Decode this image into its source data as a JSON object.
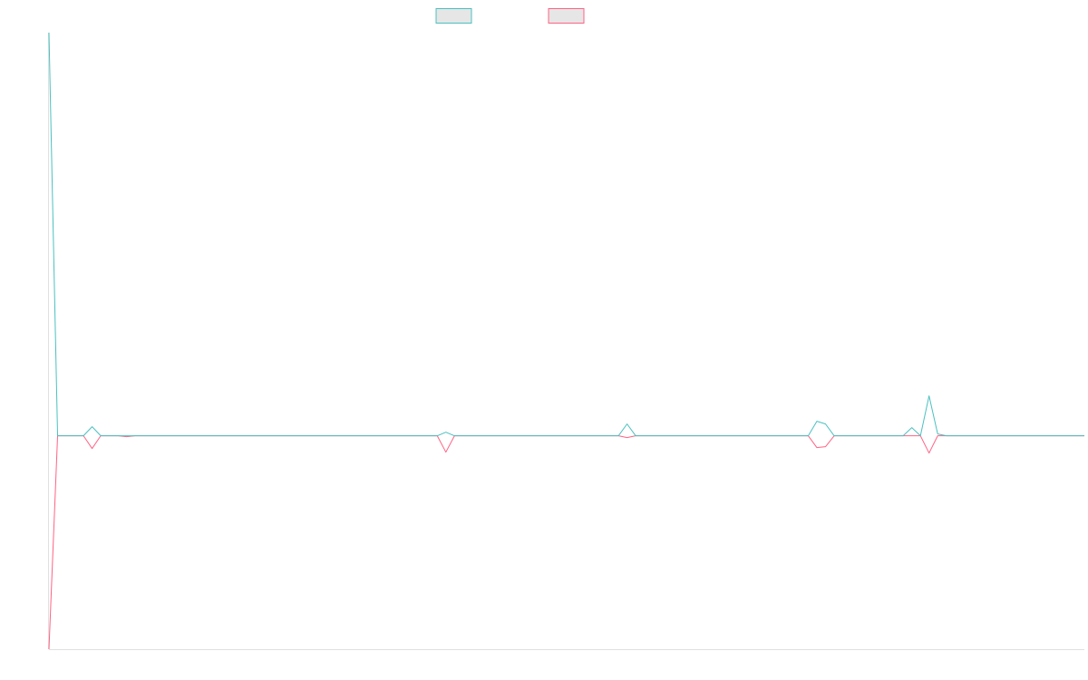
{
  "chart_data": {
    "type": "line",
    "x": [
      0,
      1,
      2,
      3,
      4,
      5,
      6,
      7,
      8,
      9,
      10,
      11,
      12,
      13,
      14,
      15,
      16,
      17,
      18,
      19,
      20,
      21,
      22,
      23,
      24,
      25,
      26,
      27,
      28,
      29,
      30,
      31,
      32,
      33,
      34,
      35,
      36,
      37,
      38,
      39,
      40,
      41,
      42,
      43,
      44,
      45,
      46,
      47,
      48,
      49,
      50,
      51,
      52,
      53,
      54,
      55,
      56,
      57,
      58,
      59,
      60,
      61,
      62,
      63,
      64,
      65,
      66,
      67,
      68,
      69,
      70,
      71,
      72,
      73,
      74,
      75,
      76,
      77,
      78,
      79,
      80,
      81,
      82,
      83,
      84,
      85,
      86,
      87,
      88,
      89,
      90,
      91,
      92,
      93,
      94,
      95,
      96,
      97,
      98,
      99,
      100,
      101,
      102,
      103,
      104,
      105,
      106,
      107,
      108,
      109,
      110,
      111,
      112,
      113,
      114,
      115,
      116,
      117,
      118,
      119,
      120
    ],
    "series": [
      {
        "color": "#4bc0c0",
        "fill": "#e6e6e6",
        "values": [
          444,
          0,
          0,
          0,
          0,
          10,
          0,
          0,
          0,
          0,
          0,
          0,
          0,
          0,
          0,
          0,
          0,
          0,
          0,
          0,
          0,
          0,
          0,
          0,
          0,
          0,
          0,
          0,
          0,
          0,
          0,
          0,
          0,
          0,
          0,
          0,
          0,
          0,
          0,
          0,
          0,
          0,
          0,
          0,
          0,
          0,
          4,
          0,
          0,
          0,
          0,
          0,
          0,
          0,
          0,
          0,
          0,
          0,
          0,
          0,
          0,
          0,
          0,
          0,
          0,
          0,
          0,
          13,
          0,
          0,
          0,
          0,
          0,
          0,
          0,
          0,
          0,
          0,
          0,
          0,
          0,
          0,
          0,
          0,
          0,
          0,
          0,
          0,
          0,
          16,
          13,
          0,
          0,
          0,
          0,
          0,
          0,
          0,
          0,
          0,
          9,
          0,
          44,
          2,
          0,
          0,
          0,
          0,
          0,
          0,
          0,
          0,
          0,
          0,
          0,
          0,
          0,
          0,
          0,
          0,
          0
        ]
      },
      {
        "color": "#ff6384",
        "fill": "#e6e6e6",
        "values": [
          -235,
          0,
          0,
          0,
          0,
          -14,
          0,
          0,
          0,
          -1,
          0,
          0,
          0,
          0,
          0,
          0,
          0,
          0,
          0,
          0,
          0,
          0,
          0,
          0,
          0,
          0,
          0,
          0,
          0,
          0,
          0,
          0,
          0,
          0,
          0,
          0,
          0,
          0,
          0,
          0,
          0,
          0,
          0,
          0,
          0,
          0,
          -18,
          0,
          0,
          0,
          0,
          0,
          0,
          0,
          0,
          0,
          0,
          0,
          0,
          0,
          0,
          0,
          0,
          0,
          0,
          0,
          0,
          -2,
          0,
          0,
          0,
          0,
          0,
          0,
          0,
          0,
          0,
          0,
          0,
          0,
          0,
          0,
          0,
          0,
          0,
          0,
          0,
          0,
          0,
          -13,
          -12,
          0,
          0,
          0,
          0,
          0,
          0,
          0,
          0,
          0,
          0,
          0,
          -19,
          0,
          0,
          0,
          0,
          0,
          0,
          0,
          0,
          0,
          0,
          0,
          0,
          0,
          0,
          0,
          0,
          0,
          0
        ]
      }
    ],
    "ylim": [
      -235,
      444
    ],
    "grid": false,
    "legend_position": "top"
  }
}
